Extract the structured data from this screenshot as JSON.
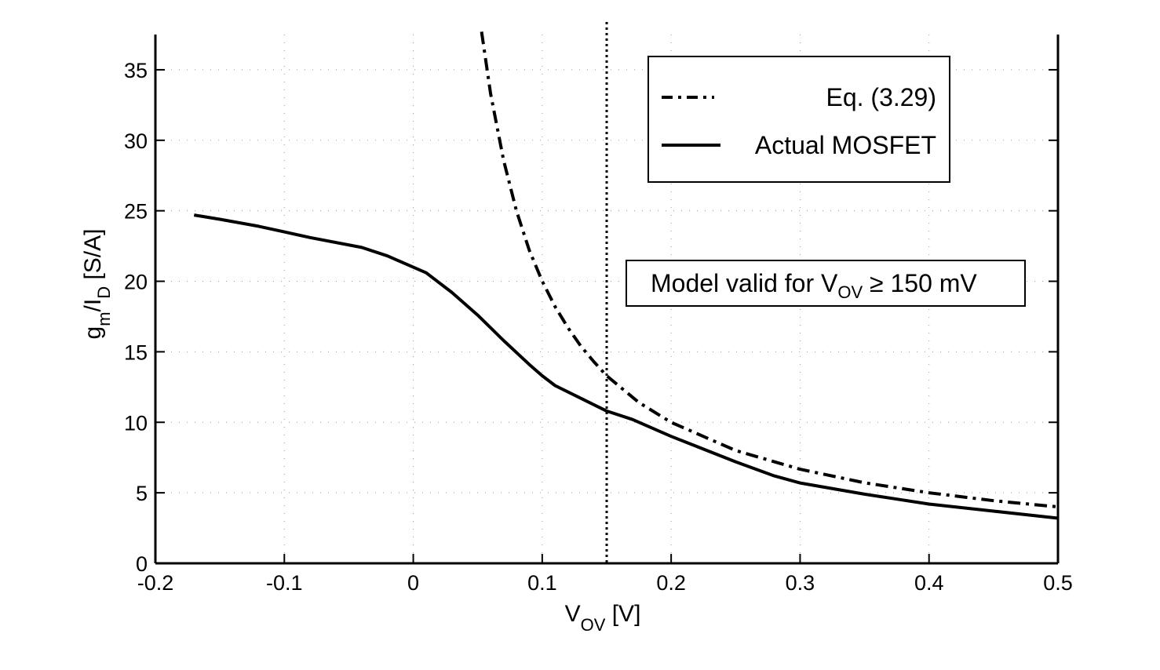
{
  "chart_data": {
    "type": "line",
    "title": "",
    "xlabel": {
      "main": "V",
      "sub": "OV",
      "unit": " [V]"
    },
    "ylabel": {
      "g": "g",
      "g_sub": "m",
      "slash_i": "/I",
      "i_sub": "D",
      "unit": " [S/A]"
    },
    "xlim": [
      -0.2,
      0.5
    ],
    "ylim": [
      0,
      37.5
    ],
    "xticks": [
      -0.2,
      -0.1,
      0,
      0.1,
      0.2,
      0.3,
      0.4,
      0.5
    ],
    "xtick_labels": [
      "-0.2",
      "-0.1",
      "0",
      "0.1",
      "0.2",
      "0.3",
      "0.4",
      "0.5"
    ],
    "yticks": [
      0,
      5,
      10,
      15,
      20,
      25,
      30,
      35
    ],
    "ytick_labels": [
      "0",
      "5",
      "10",
      "15",
      "20",
      "25",
      "30",
      "35"
    ],
    "grid": "dotted",
    "legend_position": "top-right",
    "series": [
      {
        "name": "Eq. (3.29)",
        "style": "dash-dot",
        "x": [
          0.053,
          0.06,
          0.07,
          0.08,
          0.09,
          0.1,
          0.11,
          0.12,
          0.13,
          0.14,
          0.15,
          0.175,
          0.2,
          0.25,
          0.3,
          0.35,
          0.4,
          0.45,
          0.5
        ],
        "y": [
          37.7,
          33.3,
          28.6,
          25.0,
          22.2,
          20.0,
          18.2,
          16.7,
          15.4,
          14.3,
          13.3,
          11.4,
          10.0,
          8.0,
          6.67,
          5.71,
          5.0,
          4.44,
          4.0
        ]
      },
      {
        "name": "Actual MOSFET",
        "style": "solid",
        "x": [
          -0.17,
          -0.15,
          -0.12,
          -0.1,
          -0.08,
          -0.04,
          -0.02,
          0,
          0.01,
          0.03,
          0.05,
          0.07,
          0.09,
          0.1,
          0.11,
          0.13,
          0.15,
          0.17,
          0.2,
          0.25,
          0.28,
          0.3,
          0.35,
          0.4,
          0.45,
          0.5
        ],
        "y": [
          24.7,
          24.4,
          23.9,
          23.5,
          23.1,
          22.4,
          21.8,
          21.0,
          20.6,
          19.2,
          17.6,
          15.8,
          14.1,
          13.3,
          12.6,
          11.7,
          10.8,
          10.2,
          9.0,
          7.2,
          6.2,
          5.7,
          4.9,
          4.2,
          3.7,
          3.2
        ]
      }
    ],
    "reference_line": {
      "x": 0.15,
      "style": "dotted"
    },
    "annotation": {
      "text_main": "Model valid for V",
      "text_sub": "OV",
      "text_tail": " ≥ 150 mV"
    },
    "legend": [
      {
        "label": "Eq. (3.29)",
        "style": "dash-dot"
      },
      {
        "label": "Actual MOSFET",
        "style": "solid"
      }
    ]
  }
}
